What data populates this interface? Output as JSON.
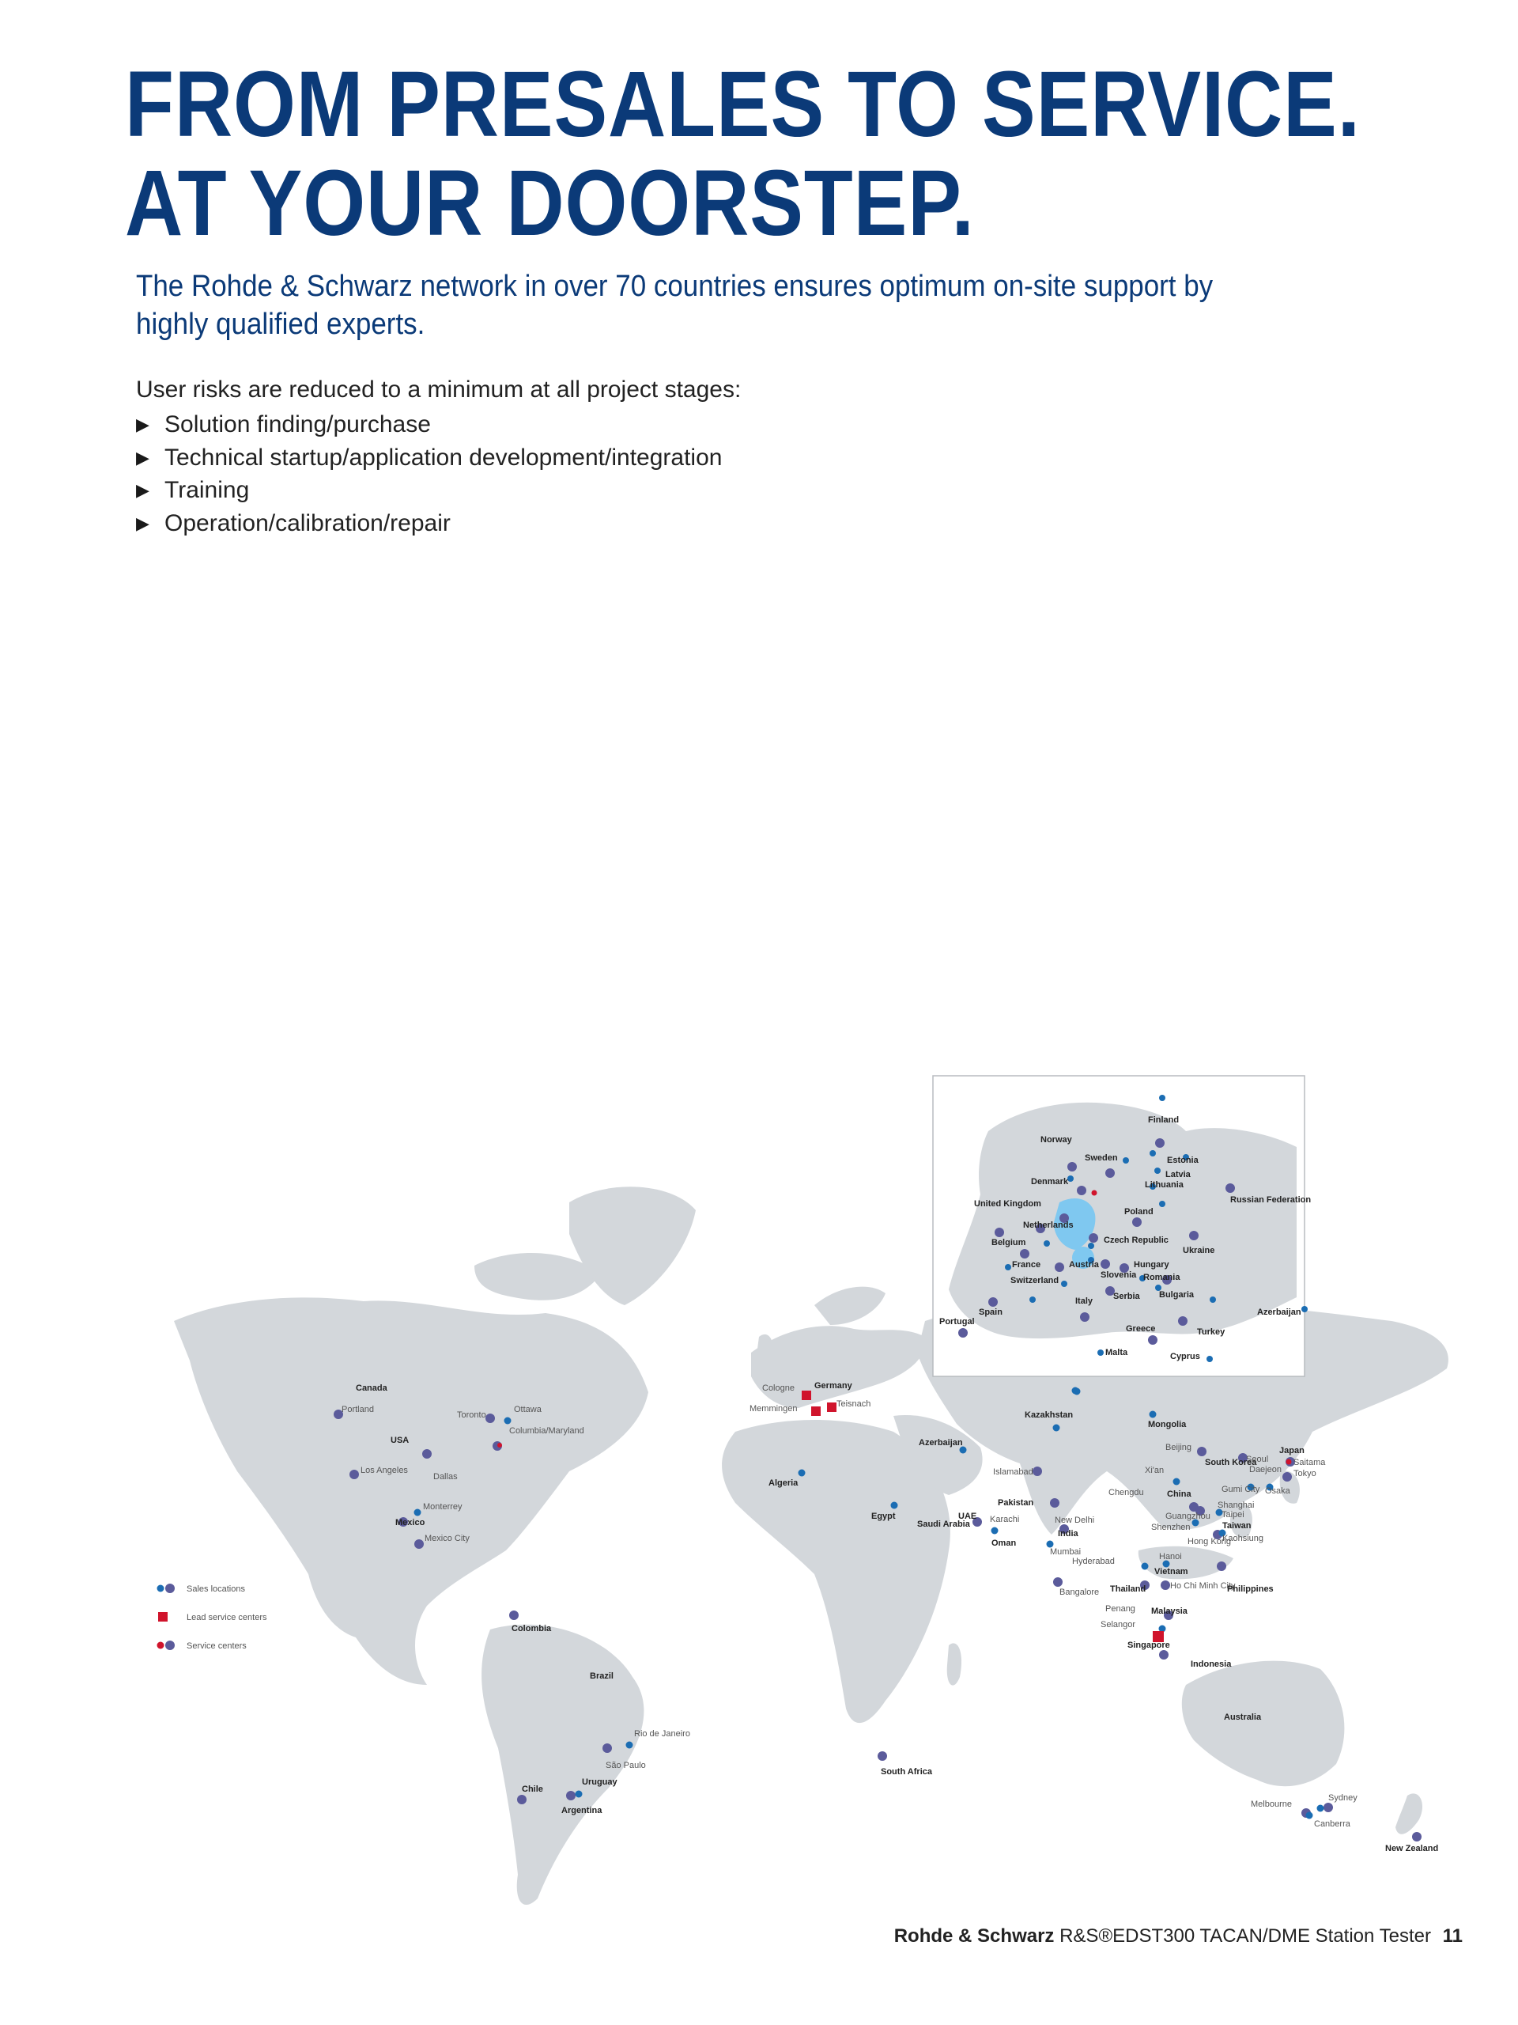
{
  "headline": {
    "line1": "FROM PRESALES TO SERVICE.",
    "line2": "AT YOUR DOORSTEP."
  },
  "lead": "The Rohde & Schwarz network in over 70 countries ensures optimum on-site support by highly qualified experts.",
  "intro": "User risks are reduced to a minimum at all project stages:",
  "bullets": [
    "Solution finding/purchase",
    "Technical startup/application development/integration",
    "Training",
    "Operation/calibration/repair"
  ],
  "legend": {
    "sales": "Sales locations",
    "lead_service": "Lead service centers",
    "service": "Service centers"
  },
  "colors": {
    "land": "#d3d7db",
    "headline": "#0b3a78",
    "sales_blue": "#1b6db3",
    "purple": "#5b5b9b",
    "lead_red": "#d0142c",
    "highlight": "#7fc8f0"
  },
  "world_labels": [
    "Canada",
    "Portland",
    "Toronto",
    "Ottawa",
    "USA",
    "Columbia/Maryland",
    "Los Angeles",
    "Dallas",
    "Monterrey",
    "Mexico",
    "Mexico City",
    "Colombia",
    "Brazil",
    "Rio de Janeiro",
    "São Paulo",
    "Uruguay",
    "Chile",
    "Argentina",
    "Cologne",
    "Germany",
    "Teisnach",
    "Memmingen",
    "Algeria",
    "Egypt",
    "South Africa",
    "Azerbaijan",
    "Kazakhstan",
    "Islamabad",
    "Pakistan",
    "Saudi Arabia",
    "UAE",
    "Karachi",
    "Oman",
    "New Delhi",
    "India",
    "Mumbai",
    "Hyderabad",
    "Bangalore",
    "Mongolia",
    "Beijing",
    "Xi'an",
    "Chengdu",
    "China",
    "Seoul",
    "South Korea",
    "Daejeon",
    "Gumi City",
    "Japan",
    "Saitama",
    "Tokyo",
    "Osaka",
    "Shanghai",
    "Taipei",
    "Guangzhou",
    "Shenzhen",
    "Taiwan",
    "Kaohsiung",
    "Hong Kong",
    "Hanoi",
    "Vietnam",
    "Ho Chi Minh City",
    "Thailand",
    "Philippines",
    "Penang",
    "Malaysia",
    "Selangor",
    "Singapore",
    "Indonesia",
    "Australia",
    "Sydney",
    "Melbourne",
    "Canberra",
    "New Zealand"
  ],
  "europe_labels": [
    "Finland",
    "Norway",
    "Sweden",
    "Estonia",
    "Denmark",
    "Latvia",
    "Lithuania",
    "Russian Federation",
    "United Kingdom",
    "Poland",
    "Netherlands",
    "Belgium",
    "Czech Republic",
    "Ukraine",
    "France",
    "Austria",
    "Hungary",
    "Switzerland",
    "Slovenia",
    "Romania",
    "Serbia",
    "Bulgaria",
    "Italy",
    "Spain",
    "Portugal",
    "Azerbaijan",
    "Greece",
    "Turkey",
    "Malta",
    "Cyprus"
  ],
  "footer": {
    "brand": "Rohde & Schwarz",
    "product": "R&S®EDST300 TACAN/DME Station Tester",
    "page": "11"
  }
}
